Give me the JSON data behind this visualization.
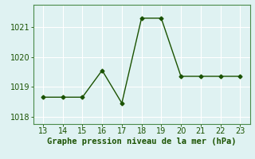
{
  "x": [
    13,
    14,
    15,
    16,
    17,
    18,
    19,
    20,
    21,
    22,
    23
  ],
  "y": [
    1018.65,
    1018.65,
    1018.65,
    1019.55,
    1018.45,
    1021.3,
    1021.3,
    1019.35,
    1019.35,
    1019.35,
    1019.35
  ],
  "xlim": [
    12.5,
    23.5
  ],
  "ylim": [
    1017.75,
    1021.75
  ],
  "yticks": [
    1018,
    1019,
    1020,
    1021
  ],
  "xticks": [
    13,
    14,
    15,
    16,
    17,
    18,
    19,
    20,
    21,
    22,
    23
  ],
  "line_color": "#1a5200",
  "marker": "D",
  "marker_size": 2.5,
  "line_width": 1.0,
  "bg_color": "#dff2f2",
  "grid_color": "#ffffff",
  "xlabel": "Graphe pression niveau de la mer (hPa)",
  "xlabel_color": "#1a5200",
  "tick_color": "#1a5200",
  "spine_color": "#4a8a4a",
  "xlabel_fontsize": 7.5,
  "tick_fontsize": 7.0
}
